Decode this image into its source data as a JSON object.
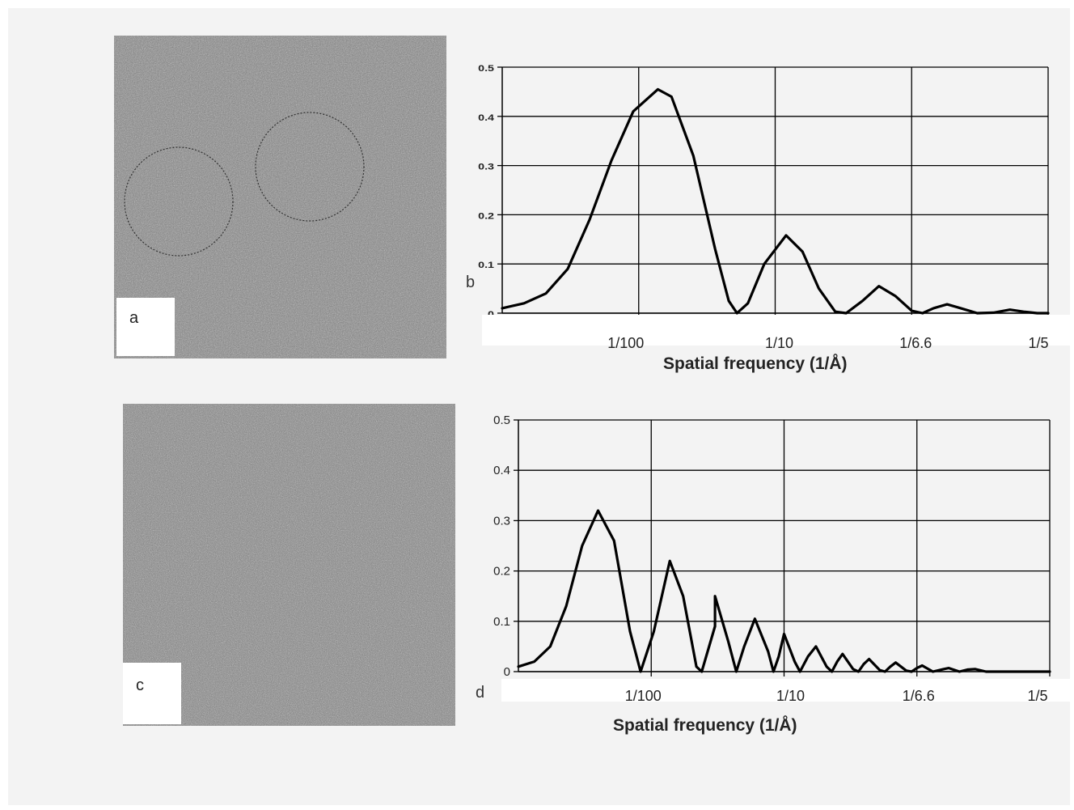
{
  "panels": {
    "a": {
      "label": "a"
    },
    "b": {
      "label": "b"
    },
    "c": {
      "label": "c"
    },
    "d": {
      "label": "d"
    }
  },
  "colors": {
    "background": "#f3f3f3",
    "curve": "#000000",
    "grid": "#000000",
    "micrograph_a": "#7a7a7a",
    "micrograph_c": "#7e7e7e"
  },
  "chart_data": [
    {
      "panel": "b",
      "type": "line",
      "xlabel": "Spatial frequency (1/Å)",
      "ylabel": "",
      "ylim": [
        0,
        0.5
      ],
      "yticks": [
        "0",
        "0.1",
        "0.2",
        "0.3",
        "0.4",
        "0.5"
      ],
      "xlim": [
        0,
        1
      ],
      "xticks": [
        {
          "label": "1/100",
          "pos": 0.25
        },
        {
          "label": "1/10",
          "pos": 0.5
        },
        {
          "label": "1/6.6",
          "pos": 0.75
        },
        {
          "label": "1/5",
          "pos": 1.0
        }
      ],
      "grid": true,
      "series": [
        {
          "points": [
            [
              0,
              0.01
            ],
            [
              0.04,
              0.02
            ],
            [
              0.08,
              0.04
            ],
            [
              0.12,
              0.09
            ],
            [
              0.16,
              0.19
            ],
            [
              0.2,
              0.31
            ],
            [
              0.24,
              0.41
            ],
            [
              0.285,
              0.455
            ],
            [
              0.31,
              0.44
            ],
            [
              0.35,
              0.32
            ],
            [
              0.39,
              0.13
            ],
            [
              0.415,
              0.025
            ],
            [
              0.43,
              0
            ],
            [
              0.45,
              0.02
            ],
            [
              0.48,
              0.1
            ],
            [
              0.52,
              0.158
            ],
            [
              0.55,
              0.125
            ],
            [
              0.58,
              0.05
            ],
            [
              0.61,
              0.003
            ],
            [
              0.63,
              0
            ],
            [
              0.66,
              0.025
            ],
            [
              0.69,
              0.055
            ],
            [
              0.72,
              0.035
            ],
            [
              0.75,
              0.005
            ],
            [
              0.77,
              0
            ],
            [
              0.79,
              0.01
            ],
            [
              0.815,
              0.018
            ],
            [
              0.84,
              0.01
            ],
            [
              0.87,
              0
            ],
            [
              0.9,
              0.001
            ],
            [
              0.93,
              0.007
            ],
            [
              0.955,
              0.003
            ],
            [
              0.98,
              0
            ],
            [
              1,
              0
            ]
          ]
        }
      ]
    },
    {
      "panel": "d",
      "type": "line",
      "xlabel": "Spatial frequency (1/Å)",
      "ylabel": "",
      "ylim": [
        0,
        0.5
      ],
      "yticks": [
        "0",
        "0.1",
        "0.2",
        "0.3",
        "0.4",
        "0.5"
      ],
      "xlim": [
        0,
        1
      ],
      "xticks": [
        {
          "label": "1/100",
          "pos": 0.25
        },
        {
          "label": "1/10",
          "pos": 0.5
        },
        {
          "label": "1/6.6",
          "pos": 0.75
        },
        {
          "label": "1/5",
          "pos": 1.0
        }
      ],
      "grid": true,
      "series": [
        {
          "points": [
            [
              0,
              0.01
            ],
            [
              0.03,
              0.02
            ],
            [
              0.06,
              0.05
            ],
            [
              0.09,
              0.13
            ],
            [
              0.12,
              0.25
            ],
            [
              0.15,
              0.32
            ],
            [
              0.18,
              0.26
            ],
            [
              0.21,
              0.08
            ],
            [
              0.23,
              0
            ],
            [
              0.255,
              0.08
            ],
            [
              0.285,
              0.22
            ],
            [
              0.31,
              0.15
            ],
            [
              0.335,
              0.01
            ],
            [
              0.345,
              0
            ],
            [
              0.37,
              0.09
            ],
            [
              0.37,
              0.15
            ],
            [
              0.395,
              0.06
            ],
            [
              0.41,
              0
            ],
            [
              0.425,
              0.05
            ],
            [
              0.445,
              0.105
            ],
            [
              0.47,
              0.04
            ],
            [
              0.48,
              0
            ],
            [
              0.49,
              0.03
            ],
            [
              0.5,
              0.075
            ],
            [
              0.52,
              0.02
            ],
            [
              0.53,
              0
            ],
            [
              0.545,
              0.03
            ],
            [
              0.56,
              0.05
            ],
            [
              0.58,
              0.01
            ],
            [
              0.59,
              0
            ],
            [
              0.6,
              0.02
            ],
            [
              0.61,
              0.035
            ],
            [
              0.63,
              0.005
            ],
            [
              0.64,
              0
            ],
            [
              0.65,
              0.015
            ],
            [
              0.66,
              0.025
            ],
            [
              0.68,
              0.003
            ],
            [
              0.69,
              0
            ],
            [
              0.7,
              0.01
            ],
            [
              0.71,
              0.018
            ],
            [
              0.73,
              0.002
            ],
            [
              0.74,
              0
            ],
            [
              0.75,
              0.007
            ],
            [
              0.76,
              0.012
            ],
            [
              0.78,
              0
            ],
            [
              0.8,
              0.005
            ],
            [
              0.81,
              0.007
            ],
            [
              0.83,
              0
            ],
            [
              0.845,
              0.004
            ],
            [
              0.86,
              0.005
            ],
            [
              0.88,
              0
            ],
            [
              1,
              0
            ]
          ]
        }
      ]
    }
  ]
}
